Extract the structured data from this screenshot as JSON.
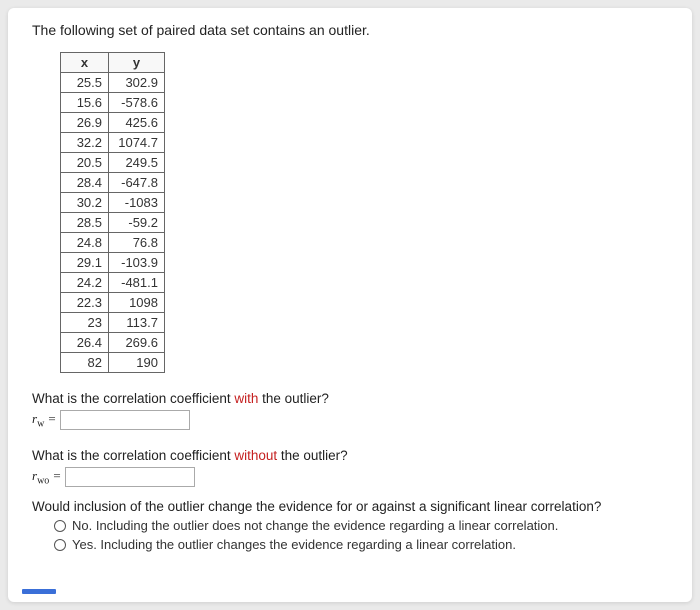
{
  "prompt": "The following set of paired data set contains an outlier.",
  "table": {
    "columns": [
      "x",
      "y"
    ],
    "column_x_width": 44,
    "column_y_width": 56,
    "align": "right",
    "border_color": "#666666",
    "header_bg": "#f8f8f8",
    "font_size": 13,
    "rows": [
      [
        "25.5",
        "302.9"
      ],
      [
        "15.6",
        "-578.6"
      ],
      [
        "26.9",
        "425.6"
      ],
      [
        "32.2",
        "1074.7"
      ],
      [
        "20.5",
        "249.5"
      ],
      [
        "28.4",
        "-647.8"
      ],
      [
        "30.2",
        "-1083"
      ],
      [
        "28.5",
        "-59.2"
      ],
      [
        "24.8",
        "76.8"
      ],
      [
        "29.1",
        "-103.9"
      ],
      [
        "24.2",
        "-481.1"
      ],
      [
        "22.3",
        "1098"
      ],
      [
        "23",
        "113.7"
      ],
      [
        "26.4",
        "269.6"
      ],
      [
        "82",
        "190"
      ]
    ]
  },
  "q1": {
    "pre": "What is the correlation coefficient ",
    "emph": "with",
    "post": " the outlier?",
    "label_var": "r",
    "label_sub": "w",
    "equals": " =",
    "value": ""
  },
  "q2": {
    "pre": "What is the correlation coefficient ",
    "emph": "without",
    "post": " the outlier?",
    "label_var": "r",
    "label_sub": "wo",
    "equals": " =",
    "value": ""
  },
  "q3": {
    "text": "Would inclusion of the outlier change the evidence for or against a significant linear correlation?",
    "options": [
      "No. Including the outlier does not change the evidence regarding a linear correlation.",
      "Yes. Including the outlier changes the evidence regarding a linear correlation."
    ]
  },
  "colors": {
    "page_bg": "#eaeaea",
    "card_bg": "#ffffff",
    "text": "#222222",
    "emphasis": "#c52020",
    "progress": "#3a6fd8",
    "input_border": "#aaaaaa"
  }
}
